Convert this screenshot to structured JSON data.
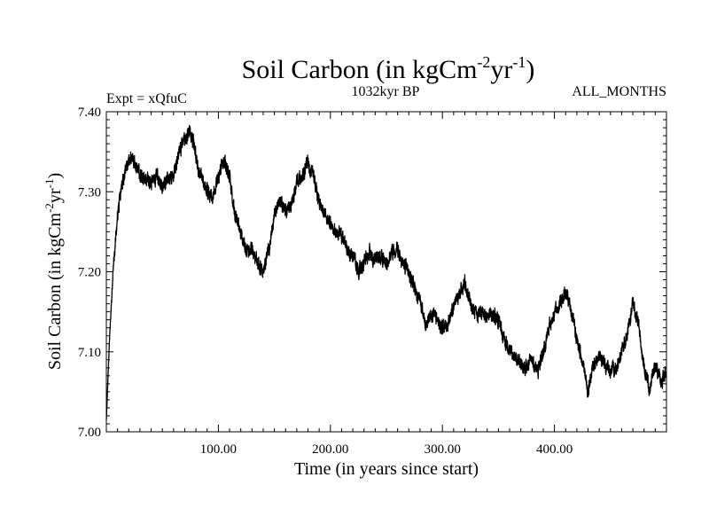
{
  "chart_data": {
    "type": "line",
    "title": {
      "main": "Soil Carbon (in kgCm",
      "sup1": "-2",
      "mid": "yr",
      "sup2": "-1",
      "close": ")"
    },
    "header": {
      "left": "Expt = xQfuC",
      "center": "1032kyr BP",
      "right": "ALL_MONTHS"
    },
    "xlabel": "Time (in years since start)",
    "ylabel": {
      "main": "Soil Carbon (in kgCm",
      "sup1": "-2",
      "mid": "yr",
      "sup2": "-1",
      "close": ")"
    },
    "xlim": [
      0,
      500
    ],
    "ylim": [
      7.0,
      7.4
    ],
    "x_ticks": [
      100,
      200,
      300,
      400
    ],
    "x_tick_labels": [
      "100.00",
      "200.00",
      "300.00",
      "400.00"
    ],
    "y_ticks": [
      7.0,
      7.1,
      7.2,
      7.3,
      7.4
    ],
    "y_tick_labels": [
      "7.00",
      "7.10",
      "7.20",
      "7.30",
      "7.40"
    ],
    "series": [
      {
        "name": "Soil Carbon",
        "color": "#000000",
        "noise_amplitude": 0.007,
        "x": [
          0,
          3,
          6,
          10,
          14,
          18,
          22,
          26,
          30,
          35,
          40,
          45,
          50,
          55,
          60,
          65,
          70,
          74,
          78,
          82,
          86,
          90,
          95,
          100,
          105,
          110,
          115,
          120,
          125,
          130,
          135,
          140,
          145,
          150,
          155,
          160,
          165,
          170,
          175,
          180,
          185,
          190,
          195,
          200,
          205,
          210,
          215,
          220,
          225,
          230,
          235,
          240,
          245,
          250,
          255,
          260,
          265,
          270,
          275,
          280,
          285,
          290,
          295,
          300,
          305,
          310,
          315,
          320,
          325,
          330,
          335,
          340,
          345,
          350,
          355,
          360,
          365,
          370,
          375,
          380,
          385,
          390,
          395,
          400,
          405,
          410,
          415,
          420,
          425,
          430,
          435,
          440,
          445,
          450,
          455,
          460,
          465,
          470,
          475,
          480,
          485,
          490,
          495,
          500
        ],
        "y": [
          7.015,
          7.12,
          7.2,
          7.27,
          7.31,
          7.33,
          7.345,
          7.335,
          7.32,
          7.315,
          7.31,
          7.32,
          7.305,
          7.315,
          7.325,
          7.35,
          7.365,
          7.375,
          7.36,
          7.33,
          7.315,
          7.3,
          7.29,
          7.32,
          7.34,
          7.32,
          7.27,
          7.25,
          7.225,
          7.23,
          7.21,
          7.2,
          7.225,
          7.27,
          7.29,
          7.275,
          7.285,
          7.31,
          7.32,
          7.335,
          7.32,
          7.285,
          7.27,
          7.26,
          7.25,
          7.245,
          7.23,
          7.22,
          7.2,
          7.21,
          7.225,
          7.215,
          7.22,
          7.21,
          7.225,
          7.23,
          7.21,
          7.2,
          7.18,
          7.165,
          7.13,
          7.15,
          7.14,
          7.13,
          7.135,
          7.16,
          7.17,
          7.185,
          7.16,
          7.145,
          7.15,
          7.145,
          7.145,
          7.14,
          7.115,
          7.105,
          7.09,
          7.085,
          7.08,
          7.09,
          7.075,
          7.1,
          7.13,
          7.15,
          7.16,
          7.175,
          7.15,
          7.115,
          7.09,
          7.05,
          7.085,
          7.095,
          7.085,
          7.075,
          7.08,
          7.1,
          7.12,
          7.16,
          7.135,
          7.08,
          7.055,
          7.085,
          7.06,
          7.075
        ]
      }
    ]
  }
}
